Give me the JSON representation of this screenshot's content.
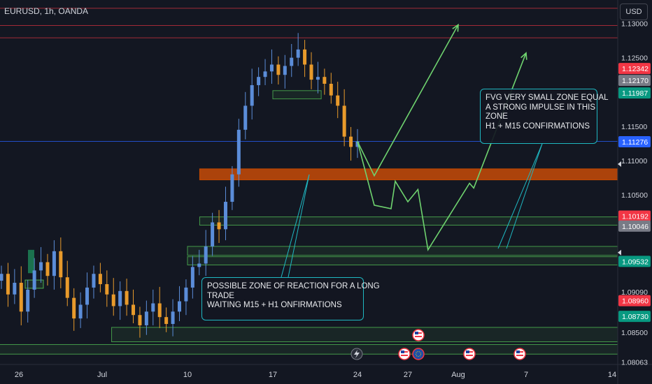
{
  "header": {
    "symbol": "EURUSD, 1h, OANDA",
    "currency": "USD"
  },
  "chart_data": {
    "type": "candlestick",
    "symbol": "EURUSD",
    "timeframe": "1h",
    "broker": "OANDA",
    "ylim": [
      1.0805,
      1.1328
    ],
    "price_ticks": [
      "1.13000",
      "1.12500",
      "1.11500",
      "1.11000",
      "1.10500",
      "1.09090",
      "1.08500",
      "1.08063"
    ],
    "time_ticks": [
      "26",
      "Jul",
      "10",
      "17",
      "24",
      "27",
      "Aug",
      "7",
      "14"
    ],
    "price_badges": [
      {
        "label": "1.12342",
        "price": 1.12342,
        "color": "#f23645"
      },
      {
        "label": "1.12170",
        "price": 1.1217,
        "color": "#787b86"
      },
      {
        "label": "1.11987",
        "price": 1.11987,
        "color": "#089981"
      },
      {
        "label": "1.11276",
        "price": 1.11276,
        "color": "#2962ff"
      },
      {
        "label": "1.10192",
        "price": 1.10192,
        "color": "#f23645"
      },
      {
        "label": "1.10046",
        "price": 1.10046,
        "color": "#787b86"
      },
      {
        "label": "1.09532",
        "price": 1.09532,
        "color": "#089981"
      },
      {
        "label": "1.08960",
        "price": 1.0896,
        "color": "#f23645"
      },
      {
        "label": "1.08730",
        "price": 1.0873,
        "color": "#089981"
      }
    ],
    "horizontal_lines": [
      {
        "price": 1.1322,
        "color": "#f23645"
      },
      {
        "price": 1.1297,
        "color": "#f23645"
      },
      {
        "price": 1.1279,
        "color": "#f23645"
      },
      {
        "price": 1.1128,
        "color": "#2962ff"
      }
    ],
    "zones": [
      {
        "top": 1.1088,
        "bottom": 1.1072,
        "x_start": "Jul 11",
        "color": "#ff5a00",
        "kind": "fvg"
      },
      {
        "top": 1.1018,
        "bottom": 1.1006,
        "x_start": "Jul 11",
        "color": "#4caf50",
        "kind": "support"
      },
      {
        "top": 1.0975,
        "bottom": 1.0962,
        "x_start": "Jul 10",
        "color": "#4caf50",
        "kind": "support"
      },
      {
        "top": 1.096,
        "bottom": 1.0948,
        "x_start": "Jul 10",
        "color": "#4caf50",
        "kind": "support"
      },
      {
        "top": 1.0857,
        "bottom": 1.0836,
        "x_start": "Jul 2",
        "color": "#4caf50",
        "kind": "support"
      },
      {
        "top": 1.0832,
        "bottom": 1.0818,
        "x_start": "Jun 24",
        "color": "#4caf50",
        "kind": "support"
      },
      {
        "top": 1.1202,
        "bottom": 1.119,
        "x_start": "Jul 17",
        "x_end": "Jul 21",
        "color": "#4caf50",
        "kind": "consolidation"
      }
    ],
    "projections": [
      {
        "name": "path-a",
        "points": [
          [
            "Jul 24",
            1.1128
          ],
          [
            "Jul 25",
            1.1078
          ],
          [
            "Aug 1",
            1.1298
          ]
        ]
      },
      {
        "name": "path-b",
        "points": [
          [
            "Jul 24",
            1.1128
          ],
          [
            "Jul 25",
            1.1035
          ],
          [
            "Jul 26",
            1.103
          ],
          [
            "Jul 26",
            1.107
          ],
          [
            "Jul 27",
            1.104
          ],
          [
            "Jul 28",
            1.1058
          ],
          [
            "Jul 29",
            1.097
          ],
          [
            "Aug 2",
            1.1067
          ],
          [
            "Aug 2",
            1.106
          ],
          [
            "Aug 7",
            1.1257
          ]
        ]
      }
    ],
    "series": [
      {
        "name": "EURUSD",
        "values_close": [
          1.0935,
          1.0905,
          1.0922,
          1.088,
          1.0912,
          1.094,
          1.0952,
          1.0932,
          1.0968,
          1.093,
          1.09,
          1.087,
          1.089,
          1.0915,
          1.0935,
          1.092,
          1.0905,
          1.0888,
          1.091,
          1.089,
          1.0875,
          1.086,
          1.088,
          1.0892,
          1.0872,
          1.0862,
          1.088,
          1.0895,
          1.0915,
          1.0945,
          1.095,
          1.0975,
          1.101,
          1.1,
          1.104,
          1.108,
          1.1145,
          1.118,
          1.121,
          1.1222,
          1.123,
          1.124,
          1.1225,
          1.1238,
          1.125,
          1.1262,
          1.124,
          1.1218,
          1.1222,
          1.1212,
          1.1195,
          1.118,
          1.1135,
          1.112,
          1.1128
        ]
      }
    ],
    "event_icons": [
      "flag-icon-us",
      "lightning-icon",
      "flag-icon-us",
      "flag-icon-eu",
      "flag-icon-us",
      "flag-icon-us"
    ]
  },
  "annotations": {
    "long_zone": {
      "lines": [
        "POSSIBLE ZONE OF REACTION FOR A LONG",
        "TRADE",
        "WAITING M15 + H1 ONFIRMATIONS"
      ],
      "border": "#1fb8c2"
    },
    "fvg_zone": {
      "lines": [
        "FVG VERY SMALL ZONE EQUAL",
        "A STRONG IMPULSE IN THIS",
        "ZONE",
        "H1 + M15 CONFIRMATIONS"
      ],
      "border": "#1fb8c2"
    }
  },
  "colors": {
    "background": "#131722",
    "up": "#5b8dd9",
    "down": "#e89a2b",
    "fvg": "#ff5a00",
    "zone": "#4caf50",
    "projection": "#4caf50",
    "callout": "#1fb8c2"
  }
}
